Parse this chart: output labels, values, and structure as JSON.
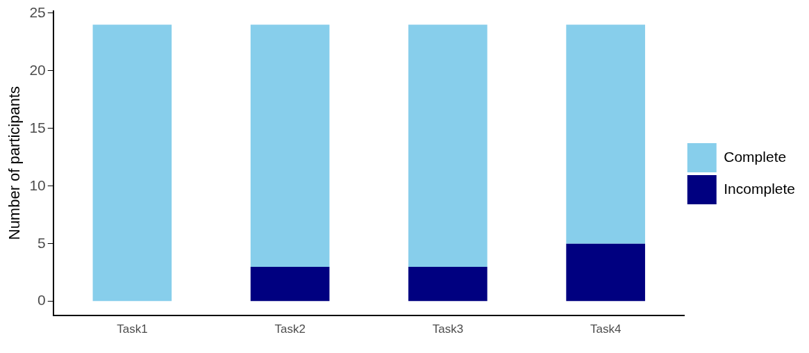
{
  "chart_data": {
    "type": "bar",
    "stacked": true,
    "ylabel": "Number of participants",
    "categories": [
      "Task1",
      "Task2",
      "Task3",
      "Task4"
    ],
    "series": [
      {
        "name": "Incomplete",
        "color": "#000080",
        "values": [
          0,
          3,
          3,
          5
        ]
      },
      {
        "name": "Complete",
        "color": "#87ceeb",
        "values": [
          24,
          21,
          21,
          19
        ]
      }
    ],
    "ylim": [
      -1.2,
      25.2
    ],
    "yticks": [
      0,
      5,
      10,
      15,
      20,
      25
    ],
    "grid": false,
    "legend": "right"
  }
}
